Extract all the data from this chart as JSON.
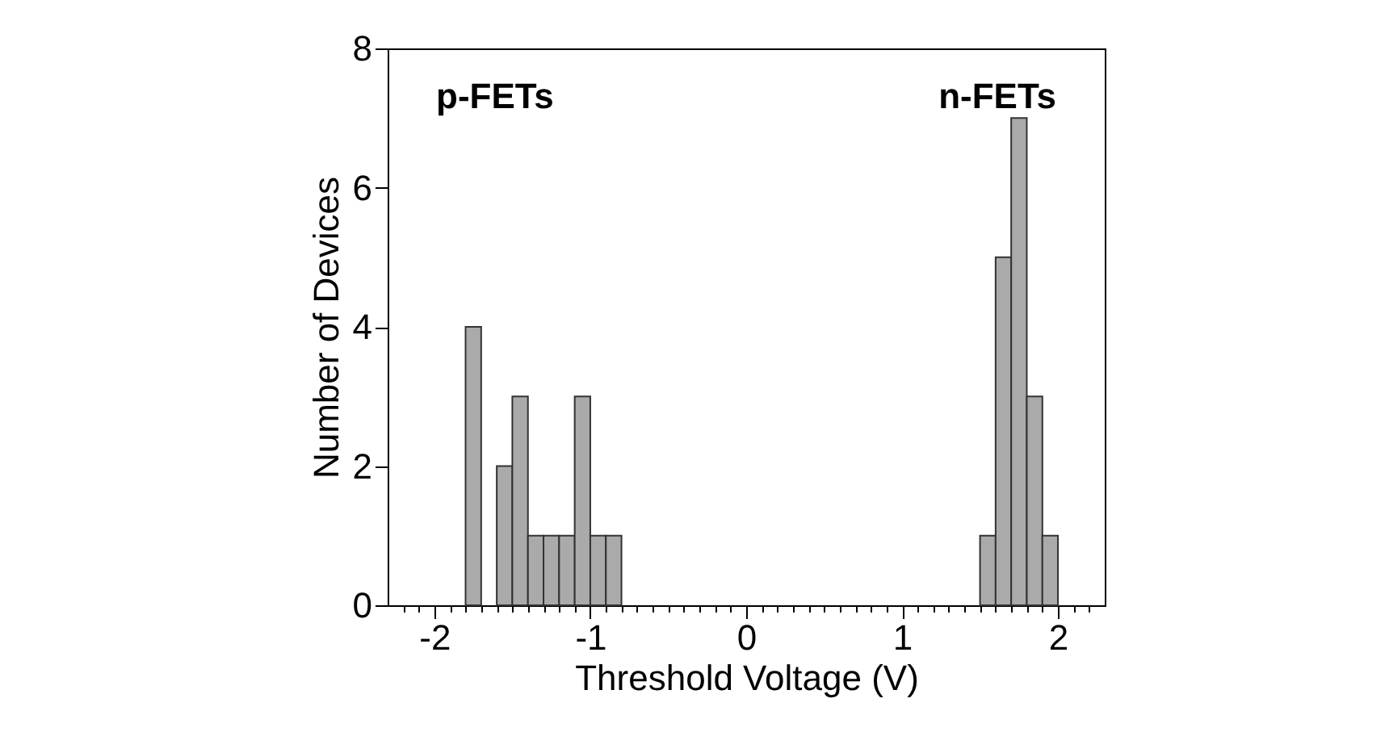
{
  "chart_data": {
    "type": "histogram",
    "xlabel": "Threshold Voltage (V)",
    "ylabel": "Number of Devices",
    "bins": [
      -1.8,
      -1.7,
      -1.6,
      -1.5,
      -1.4,
      -1.3,
      -1.2,
      -1.1,
      -1.0,
      -0.9,
      -0.8,
      -0.7,
      -0.6,
      -0.5,
      -0.4,
      -0.3,
      -0.2,
      -0.1,
      0.0,
      0.1,
      0.2,
      0.3,
      0.4,
      0.5,
      0.6,
      0.7,
      0.8,
      0.9,
      1.0,
      1.1,
      1.2,
      1.3,
      1.4,
      1.5,
      1.6,
      1.7,
      1.8,
      1.9,
      2.0
    ],
    "values": [
      4,
      0,
      2,
      3,
      1,
      1,
      1,
      3,
      1,
      1,
      0,
      0,
      0,
      0,
      0,
      0,
      0,
      0,
      0,
      0,
      0,
      0,
      0,
      0,
      0,
      0,
      0,
      0,
      0,
      0,
      0,
      0,
      0,
      1,
      5,
      7,
      3,
      1
    ],
    "color": "#aaaaaa",
    "xlim": [
      -2.3,
      2.3
    ],
    "xticks": [
      {
        "value": -2.2,
        "label": null
      },
      {
        "value": -2.1,
        "label": null
      },
      -2,
      {
        "value": -1.9,
        "label": null
      },
      {
        "value": -1.8,
        "label": null
      },
      {
        "value": -1.7,
        "label": null
      },
      {
        "value": -1.6,
        "label": null
      },
      {
        "value": -1.5,
        "label": null
      },
      {
        "value": -1.4,
        "label": null
      },
      {
        "value": -1.3,
        "label": null
      },
      {
        "value": -1.2,
        "label": null
      },
      {
        "value": -1.1,
        "label": null
      },
      -1,
      {
        "value": -0.9,
        "label": null
      },
      {
        "value": -0.8,
        "label": null
      },
      {
        "value": -0.7,
        "label": null
      },
      {
        "value": -0.6,
        "label": null
      },
      {
        "value": -0.5,
        "label": null
      },
      {
        "value": -0.4,
        "label": null
      },
      {
        "value": -0.3,
        "label": null
      },
      {
        "value": -0.2,
        "label": null
      },
      {
        "value": -0.1,
        "label": null
      },
      0,
      {
        "value": 0.1,
        "label": null
      },
      {
        "value": 0.2,
        "label": null
      },
      {
        "value": 0.3,
        "label": null
      },
      {
        "value": 0.4,
        "label": null
      },
      {
        "value": 0.5,
        "label": null
      },
      {
        "value": 0.6,
        "label": null
      },
      {
        "value": 0.7,
        "label": null
      },
      {
        "value": 0.8,
        "label": null
      },
      {
        "value": 0.9,
        "label": null
      },
      1,
      {
        "value": 1.1,
        "label": null
      },
      {
        "value": 1.2,
        "label": null
      },
      {
        "value": 1.3,
        "label": null
      },
      {
        "value": 1.4,
        "label": null
      },
      {
        "value": 1.5,
        "label": null
      },
      {
        "value": 1.6,
        "label": null
      },
      {
        "value": 1.7,
        "label": null
      },
      {
        "value": 1.8,
        "label": null
      },
      {
        "value": 1.9,
        "label": null
      },
      2,
      {
        "value": 2.1,
        "label": null
      },
      {
        "value": 2.2,
        "label": null
      }
    ],
    "ylim": [
      0,
      8
    ],
    "yticks": [
      0,
      2,
      4,
      6,
      8
    ],
    "grid": false,
    "annotations": [
      "p-FETs",
      "n-FETs"
    ]
  }
}
